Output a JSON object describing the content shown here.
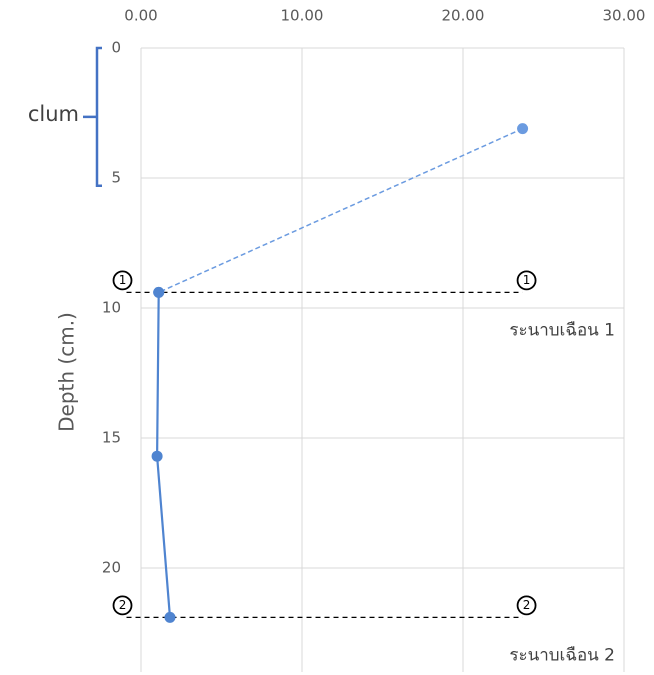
{
  "chart_data": {
    "type": "line",
    "y_label": "Depth (cm.)",
    "xlim": [
      0,
      30
    ],
    "ylim": [
      0,
      24
    ],
    "y_inverted": true,
    "x_axis_position": "top",
    "grid": true,
    "xticks": [
      {
        "value": 0,
        "label": "0.00"
      },
      {
        "value": 10,
        "label": "10.00"
      },
      {
        "value": 20,
        "label": "20.00"
      },
      {
        "value": 30,
        "label": "30.00"
      }
    ],
    "yticks": [
      0,
      5,
      10,
      15,
      20
    ],
    "series": [
      {
        "color": "#6b9be0",
        "style": "dashed",
        "x": [
          23.7,
          1.1
        ],
        "values": [
          3.1,
          9.4
        ]
      },
      {
        "color": "#4f84d0",
        "style": "solid",
        "x": [
          1.1,
          1.0,
          1.8
        ],
        "values": [
          9.4,
          15.7,
          21.9
        ]
      }
    ],
    "reference_lines": [
      {
        "y": 9.4,
        "x": [
          -0.9,
          23.7
        ],
        "markers": [
          "1",
          "1"
        ],
        "label": "ระนาบเฉือน 1"
      },
      {
        "y": 21.9,
        "x": [
          -0.9,
          23.7
        ],
        "markers": [
          "2",
          "2"
        ],
        "label": "ระนาบเฉือน 2"
      }
    ],
    "bracket": {
      "label": "clum",
      "y_range": [
        0,
        5.3
      ],
      "color": "#4472c4"
    }
  }
}
